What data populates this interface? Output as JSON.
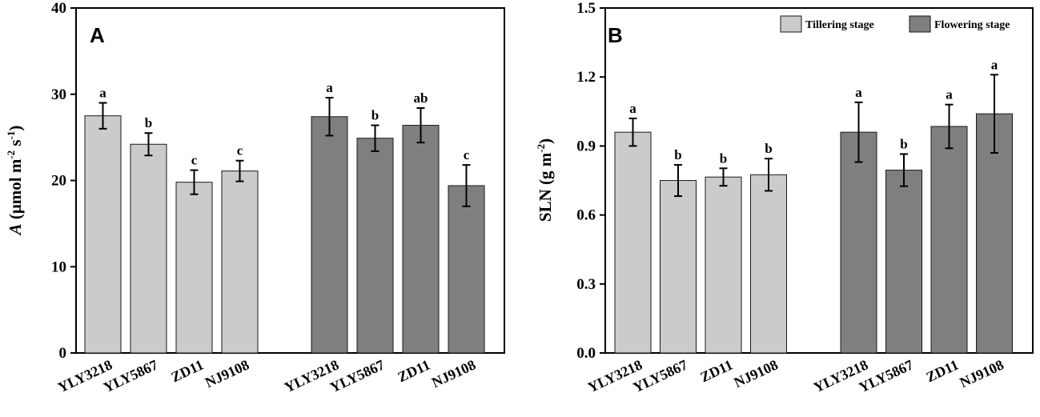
{
  "chart_data": [
    {
      "type": "bar",
      "panel_label": "A",
      "ylabel": {
        "main": "A",
        "open": " (μmol m",
        "sup1": "-2",
        "mid": " s",
        "sup2": "-1",
        "close": ")"
      },
      "ylim": [
        0,
        40
      ],
      "yticks": [
        "0",
        "10",
        "20",
        "30",
        "40"
      ],
      "stages": [
        {
          "name": "Tillering stage",
          "color": "#cbcbcb",
          "categories": [
            "YLY3218",
            "YLY5867",
            "ZD11",
            "NJ9108"
          ],
          "values": [
            27.5,
            24.2,
            19.8,
            21.1
          ],
          "errors": [
            1.5,
            1.3,
            1.4,
            1.2
          ],
          "letters": [
            "a",
            "b",
            "c",
            "c"
          ]
        },
        {
          "name": "Flowering stage",
          "color": "#7f7f7f",
          "categories": [
            "YLY3218",
            "YLY5867",
            "ZD11",
            "NJ9108"
          ],
          "values": [
            27.4,
            24.9,
            26.4,
            19.4
          ],
          "errors": [
            2.2,
            1.5,
            2.0,
            2.4
          ],
          "letters": [
            "a",
            "b",
            "ab",
            "c"
          ]
        }
      ]
    },
    {
      "type": "bar",
      "panel_label": "B",
      "ylabel": {
        "main": "SLN (g m",
        "sup1": "-2",
        "close": ")"
      },
      "ylim": [
        0,
        1.5
      ],
      "yticks": [
        "0.0",
        "0.3",
        "0.6",
        "0.9",
        "1.2",
        "1.5"
      ],
      "legend": {
        "position": "top-right",
        "items": [
          {
            "label": "Tillering stage",
            "color": "#cbcbcb"
          },
          {
            "label": "Flowering stage",
            "color": "#7f7f7f"
          }
        ]
      },
      "stages": [
        {
          "name": "Tillering stage",
          "color": "#cbcbcb",
          "categories": [
            "YLY3218",
            "YLY5867",
            "ZD11",
            "NJ9108"
          ],
          "values": [
            0.96,
            0.75,
            0.765,
            0.775
          ],
          "errors": [
            0.06,
            0.068,
            0.038,
            0.07
          ],
          "letters": [
            "a",
            "b",
            "b",
            "b"
          ]
        },
        {
          "name": "Flowering stage",
          "color": "#7f7f7f",
          "categories": [
            "YLY3218",
            "YLY5867",
            "ZD11",
            "NJ9108"
          ],
          "values": [
            0.96,
            0.795,
            0.985,
            1.04
          ],
          "errors": [
            0.13,
            0.07,
            0.095,
            0.17
          ],
          "letters": [
            "a",
            "b",
            "a",
            "a"
          ]
        }
      ]
    }
  ]
}
